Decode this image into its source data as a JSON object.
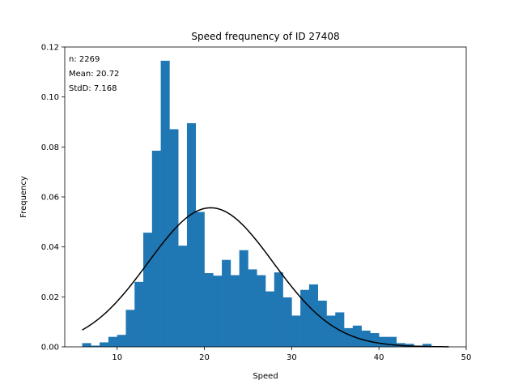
{
  "chart_data": {
    "type": "bar",
    "title": "Speed frequnency of ID 27408",
    "xlabel": "Speed",
    "ylabel": "Frequency",
    "xlim": [
      4,
      50
    ],
    "ylim": [
      0,
      0.12
    ],
    "xticks": [
      10,
      20,
      30,
      40,
      50
    ],
    "yticks": [
      0.0,
      0.02,
      0.04,
      0.06,
      0.08,
      0.1,
      0.12
    ],
    "ytick_labels": [
      "0.00",
      "0.02",
      "0.04",
      "0.06",
      "0.08",
      "0.10",
      "0.12"
    ],
    "grid": false,
    "bar_color": "#1f77b4",
    "curve_color": "#000000",
    "stats": {
      "n": "n: 2269",
      "mean": "Mean: 20.72",
      "std": "StdD: 7.168"
    },
    "bins": [
      [
        6.0,
        7.0,
        0.0015
      ],
      [
        7.0,
        8.0,
        0.0005
      ],
      [
        8.0,
        9.0,
        0.0018
      ],
      [
        9.0,
        10.0,
        0.004
      ],
      [
        10.0,
        11.0,
        0.0048
      ],
      [
        11.0,
        12.0,
        0.0148
      ],
      [
        12.0,
        13.0,
        0.026
      ],
      [
        13.0,
        14.0,
        0.0457
      ],
      [
        14.0,
        15.0,
        0.0785
      ],
      [
        15.0,
        16.0,
        0.1145
      ],
      [
        16.0,
        17.0,
        0.0871
      ],
      [
        17.0,
        18.0,
        0.0405
      ],
      [
        18.0,
        19.0,
        0.0895
      ],
      [
        19.0,
        20.0,
        0.054
      ],
      [
        20.0,
        21.0,
        0.0295
      ],
      [
        21.0,
        22.0,
        0.0285
      ],
      [
        22.0,
        23.0,
        0.0348
      ],
      [
        23.0,
        24.0,
        0.0287
      ],
      [
        24.0,
        25.0,
        0.0387
      ],
      [
        25.0,
        26.0,
        0.031
      ],
      [
        26.0,
        27.0,
        0.0287
      ],
      [
        27.0,
        28.0,
        0.0222
      ],
      [
        28.0,
        29.0,
        0.0298
      ],
      [
        29.0,
        30.0,
        0.0198
      ],
      [
        30.0,
        31.0,
        0.0125
      ],
      [
        31.0,
        32.0,
        0.0228
      ],
      [
        32.0,
        33.0,
        0.025
      ],
      [
        33.0,
        34.0,
        0.0185
      ],
      [
        34.0,
        35.0,
        0.0125
      ],
      [
        35.0,
        36.0,
        0.0138
      ],
      [
        36.0,
        37.0,
        0.0075
      ],
      [
        37.0,
        38.0,
        0.0085
      ],
      [
        38.0,
        39.0,
        0.0065
      ],
      [
        39.0,
        40.0,
        0.0055
      ],
      [
        40.0,
        41.0,
        0.004
      ],
      [
        41.0,
        42.0,
        0.004
      ],
      [
        42.0,
        43.0,
        0.0015
      ],
      [
        43.0,
        44.0,
        0.0012
      ],
      [
        44.0,
        45.0,
        0.0005
      ],
      [
        45.0,
        46.0,
        0.0012
      ]
    ],
    "normal_curve": {
      "mean": 20.72,
      "std": 7.168,
      "x_range": [
        6,
        48
      ]
    }
  }
}
